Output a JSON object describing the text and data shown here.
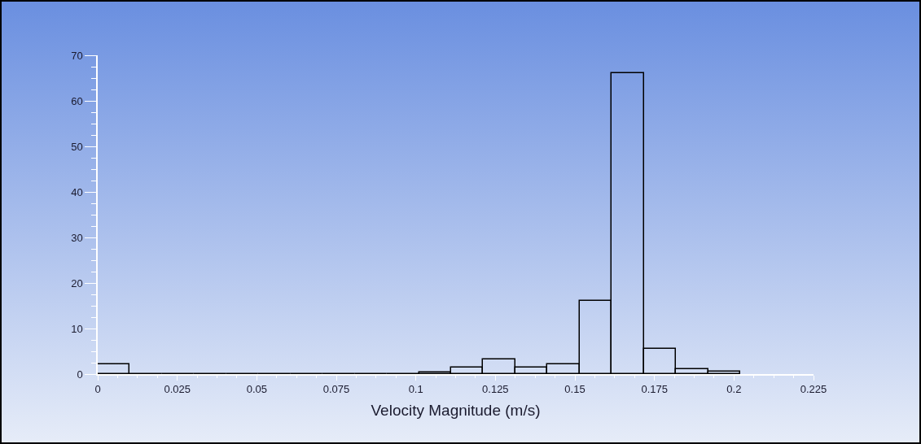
{
  "chart_data": {
    "type": "histogram",
    "xlabel": "Velocity Magnitude (m/s)",
    "bins": [
      0,
      0.0101,
      0.0202,
      0.0303,
      0.0404,
      0.0505,
      0.0606,
      0.0707,
      0.0808,
      0.0909,
      0.101,
      0.1111,
      0.1212,
      0.1313,
      0.1414,
      0.1515,
      0.1616,
      0.1717,
      0.1818,
      0.1919,
      0.202
    ],
    "values": [
      2.1,
      0,
      0,
      0,
      0,
      0,
      0,
      0,
      0,
      0,
      0.4,
      1.5,
      3.3,
      1.5,
      2.1,
      16.0,
      66.1,
      5.6,
      1.0,
      0.5
    ],
    "color": "#000000",
    "xlim": [
      0,
      0.225
    ],
    "xticks": [
      0,
      0.025,
      0.05,
      0.075,
      0.1,
      0.125,
      0.15,
      0.175,
      0.2,
      0.225
    ],
    "ylim": [
      0,
      70
    ],
    "yticks": [
      0,
      10,
      20,
      30,
      40,
      50,
      60,
      70
    ],
    "grid": false
  }
}
